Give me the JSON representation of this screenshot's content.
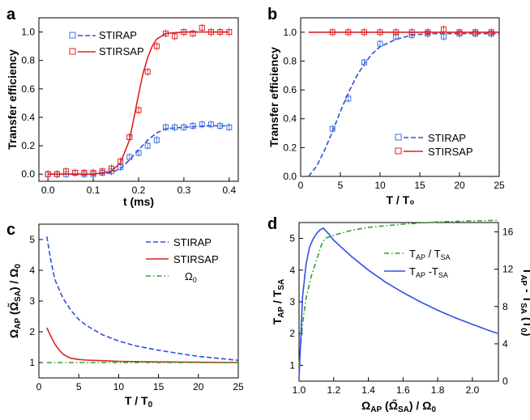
{
  "chart_data": [
    {
      "panel": "a",
      "type": "line",
      "xlabel": "t (ms)",
      "ylabel": "Transfer efficiency",
      "xlim": [
        -0.02,
        0.42
      ],
      "ylim": [
        -0.05,
        1.1
      ],
      "xticks": [
        "0.0",
        "0.1",
        "0.2",
        "0.3",
        "0.4"
      ],
      "yticks": [
        "0.0",
        "0.2",
        "0.4",
        "0.6",
        "0.8",
        "1.0"
      ],
      "legend": [
        "STIRAP",
        "STIRSAP"
      ],
      "series": [
        {
          "name": "STIRAP",
          "style": "dashed",
          "color": "#3050d8",
          "x": [
            0.0,
            0.1,
            0.14,
            0.16,
            0.18,
            0.2,
            0.22,
            0.24,
            0.26,
            0.3,
            0.35,
            0.4
          ],
          "y": [
            0.0,
            0.0,
            0.01,
            0.04,
            0.1,
            0.17,
            0.24,
            0.29,
            0.32,
            0.33,
            0.34,
            0.34
          ]
        },
        {
          "name": "STIRSAP",
          "style": "solid",
          "color": "#e02020",
          "x": [
            0.0,
            0.1,
            0.14,
            0.16,
            0.18,
            0.19,
            0.2,
            0.21,
            0.22,
            0.23,
            0.24,
            0.26,
            0.3,
            0.4
          ],
          "y": [
            0.0,
            0.0,
            0.02,
            0.08,
            0.24,
            0.4,
            0.56,
            0.71,
            0.82,
            0.9,
            0.95,
            0.99,
            1.0,
            1.0
          ]
        }
      ],
      "points": [
        {
          "name": "STIRAP",
          "color": "#4070e0",
          "x": [
            0.0,
            0.02,
            0.04,
            0.06,
            0.08,
            0.1,
            0.12,
            0.14,
            0.16,
            0.18,
            0.2,
            0.22,
            0.24,
            0.26,
            0.28,
            0.3,
            0.32,
            0.34,
            0.36,
            0.38,
            0.4
          ],
          "y": [
            0.0,
            0.0,
            0.0,
            0.01,
            0.0,
            0.0,
            0.01,
            0.02,
            0.05,
            0.12,
            0.15,
            0.2,
            0.24,
            0.33,
            0.33,
            0.33,
            0.34,
            0.35,
            0.35,
            0.34,
            0.33
          ]
        },
        {
          "name": "STIRSAP",
          "color": "#e02020",
          "x": [
            0.0,
            0.02,
            0.04,
            0.06,
            0.08,
            0.1,
            0.12,
            0.14,
            0.16,
            0.18,
            0.2,
            0.22,
            0.24,
            0.26,
            0.28,
            0.3,
            0.32,
            0.34,
            0.36,
            0.38,
            0.4
          ],
          "y": [
            0.0,
            0.0,
            0.02,
            0.01,
            0.01,
            0.01,
            0.02,
            0.04,
            0.09,
            0.26,
            0.45,
            0.72,
            0.9,
            0.99,
            0.97,
            1.0,
            0.99,
            1.03,
            1.0,
            1.0,
            1.0
          ]
        }
      ]
    },
    {
      "panel": "b",
      "type": "line",
      "xlabel": "T / T₀",
      "ylabel": "Transfer efficiency",
      "xlim": [
        0,
        25
      ],
      "ylim": [
        0,
        1.1
      ],
      "xticks": [
        "0",
        "5",
        "10",
        "15",
        "20",
        "25"
      ],
      "yticks": [
        "0.0",
        "0.2",
        "0.4",
        "0.6",
        "0.8",
        "1.0"
      ],
      "legend": [
        "STIRAP",
        "STIRSAP"
      ],
      "series": [
        {
          "name": "STIRAP",
          "style": "dashed",
          "color": "#3050d8",
          "x": [
            1,
            2,
            3,
            4,
            5,
            6,
            7,
            8,
            9,
            10,
            12,
            14,
            16,
            18,
            20,
            22,
            25
          ],
          "y": [
            0.0,
            0.07,
            0.18,
            0.31,
            0.45,
            0.58,
            0.69,
            0.78,
            0.85,
            0.9,
            0.95,
            0.98,
            0.99,
            0.99,
            0.99,
            0.99,
            0.99
          ]
        },
        {
          "name": "STIRSAP",
          "style": "solid",
          "color": "#e02020",
          "x": [
            1,
            25
          ],
          "y": [
            1.0,
            1.0
          ]
        }
      ],
      "points": [
        {
          "name": "STIRAP",
          "color": "#4070e0",
          "x": [
            4,
            6,
            8,
            10,
            12,
            14,
            16,
            18,
            20,
            22,
            24
          ],
          "y": [
            0.33,
            0.54,
            0.79,
            0.92,
            0.97,
            0.98,
            0.99,
            0.97,
            0.99,
            0.99,
            0.99
          ]
        },
        {
          "name": "STIRSAP",
          "color": "#e02020",
          "x": [
            4,
            6,
            8,
            10,
            12,
            14,
            16,
            18,
            20,
            22,
            24
          ],
          "y": [
            1.0,
            1.0,
            1.0,
            1.0,
            1.0,
            1.0,
            1.0,
            1.02,
            1.0,
            1.0,
            1.0
          ]
        }
      ]
    },
    {
      "panel": "c",
      "type": "line",
      "xlabel": "T / T₀",
      "ylabel": "ΩAP (Ω̃SA) / Ω₀",
      "xlim": [
        0,
        25
      ],
      "ylim": [
        0.5,
        5.5
      ],
      "xticks": [
        "0",
        "5",
        "10",
        "15",
        "20",
        "25"
      ],
      "yticks": [
        "1",
        "2",
        "3",
        "4",
        "5"
      ],
      "legend": [
        "STIRAP",
        "STIRSAP",
        "Ω₀"
      ],
      "series": [
        {
          "name": "STIRAP",
          "style": "dashed",
          "color": "#3050d8",
          "x": [
            1,
            1.5,
            2,
            3,
            4,
            5,
            6,
            8,
            10,
            12,
            15,
            18,
            20,
            22,
            25
          ],
          "y": [
            5.1,
            4.3,
            3.7,
            3.1,
            2.7,
            2.4,
            2.2,
            1.9,
            1.7,
            1.55,
            1.4,
            1.28,
            1.2,
            1.15,
            1.07
          ]
        },
        {
          "name": "STIRSAP",
          "style": "solid",
          "color": "#e02020",
          "x": [
            1,
            1.5,
            2,
            2.5,
            3,
            3.5,
            4,
            5,
            6,
            8,
            10,
            15,
            20,
            25
          ],
          "y": [
            2.13,
            1.85,
            1.6,
            1.42,
            1.28,
            1.2,
            1.14,
            1.1,
            1.08,
            1.06,
            1.04,
            1.02,
            1.01,
            1.0
          ]
        },
        {
          "name": "Ω₀",
          "style": "dashdot",
          "color": "#30a030",
          "x": [
            1,
            25
          ],
          "y": [
            1.0,
            1.0
          ]
        }
      ]
    },
    {
      "panel": "d",
      "type": "line",
      "xlabel": "ΩAP (Ω̃SA) / Ω₀",
      "ylabel": "TAP / TSA",
      "ylabel2": "TAP - TSA (T₀)",
      "xlim": [
        1.0,
        2.15
      ],
      "ylim": [
        0.5,
        5.5
      ],
      "y2lim": [
        0,
        17
      ],
      "xticks": [
        "1.0",
        "1.2",
        "1.4",
        "1.6",
        "1.8",
        "2.0"
      ],
      "yticks": [
        "1",
        "2",
        "3",
        "4",
        "5"
      ],
      "y2ticks": [
        "0",
        "4",
        "8",
        "12",
        "16"
      ],
      "legend": [
        "TAP / TSA",
        "TAP -TSA"
      ],
      "series": [
        {
          "name": "TAP / TSA",
          "style": "dashdot",
          "color": "#30a030",
          "axis": "left",
          "x": [
            1.0,
            1.02,
            1.04,
            1.07,
            1.1,
            1.13,
            1.15,
            1.2,
            1.3,
            1.4,
            1.6,
            1.8,
            2.0,
            2.15
          ],
          "y": [
            1.0,
            2.3,
            3.1,
            3.8,
            4.3,
            4.8,
            5.0,
            5.1,
            5.25,
            5.35,
            5.45,
            5.52,
            5.55,
            5.57
          ]
        },
        {
          "name": "TAP -TSA",
          "style": "solid",
          "color": "#3050e8",
          "axis": "right",
          "x": [
            1.0,
            1.02,
            1.04,
            1.06,
            1.08,
            1.1,
            1.12,
            1.14,
            1.17,
            1.2,
            1.3,
            1.4,
            1.5,
            1.6,
            1.7,
            1.8,
            1.9,
            2.0,
            2.1,
            2.15
          ],
          "y": [
            0.3,
            9.0,
            12.5,
            14.3,
            15.2,
            15.8,
            16.2,
            16.4,
            15.8,
            15.1,
            13.4,
            11.9,
            10.6,
            9.5,
            8.5,
            7.6,
            6.8,
            6.1,
            5.4,
            5.1
          ]
        }
      ]
    }
  ]
}
